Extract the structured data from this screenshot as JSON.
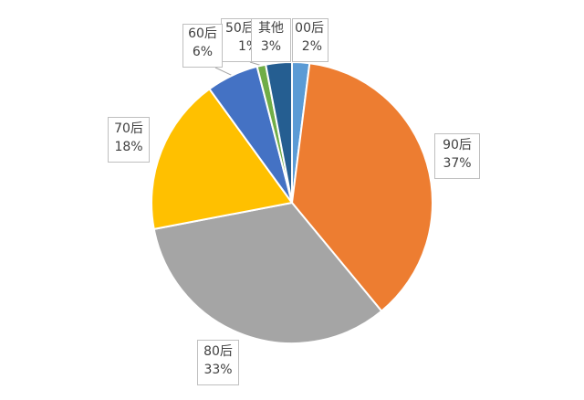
{
  "chart_data": {
    "type": "pie",
    "slices": [
      {
        "label": "00后",
        "percent_label": "2%",
        "value": 2,
        "color": "#5b9bd5"
      },
      {
        "label": "90后",
        "percent_label": "37%",
        "value": 37,
        "color": "#ed7d31"
      },
      {
        "label": "80后",
        "percent_label": "33%",
        "value": 33,
        "color": "#a5a5a5"
      },
      {
        "label": "70后",
        "percent_label": "18%",
        "value": 18,
        "color": "#ffc000"
      },
      {
        "label": "60后",
        "percent_label": "6%",
        "value": 6,
        "color": "#4472c4"
      },
      {
        "label": "50后",
        "percent_label": "1%",
        "value": 1,
        "color": "#70ad47"
      },
      {
        "label": "其他",
        "percent_label": "3%",
        "value": 3,
        "color": "#255e91"
      }
    ]
  }
}
